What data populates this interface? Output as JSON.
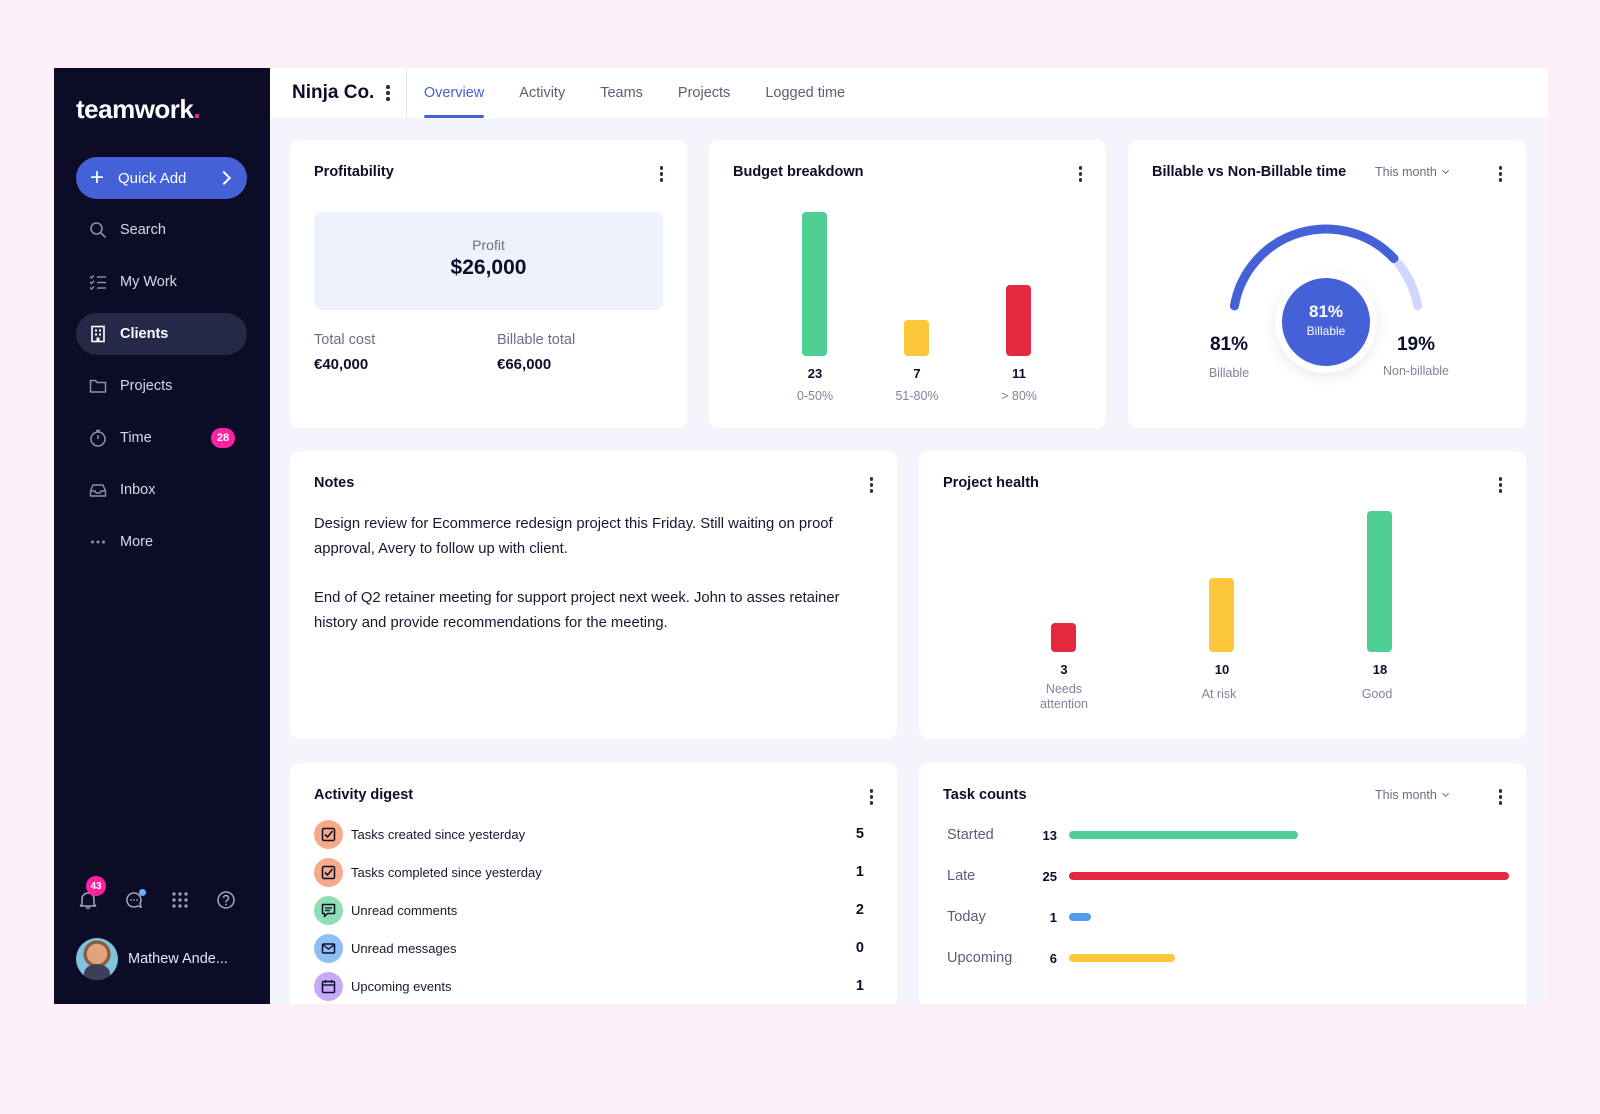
{
  "sidebar": {
    "logo": "teamwork",
    "logo_dot": ".",
    "quick_add": "Quick Add",
    "items": [
      {
        "label": "Search"
      },
      {
        "label": "My Work"
      },
      {
        "label": "Clients"
      },
      {
        "label": "Projects"
      },
      {
        "label": "Time",
        "badge": "28"
      },
      {
        "label": "Inbox"
      },
      {
        "label": "More"
      }
    ],
    "notifications_badge": "43",
    "user_name": "Mathew Ande..."
  },
  "header": {
    "company": "Ninja Co.",
    "tabs": [
      "Overview",
      "Activity",
      "Teams",
      "Projects",
      "Logged time"
    ],
    "active_tab": "Overview"
  },
  "profitability": {
    "title": "Profitability",
    "profit_label": "Profit",
    "profit_value": "$26,000",
    "total_cost_label": "Total cost",
    "total_cost_value": "€40,000",
    "billable_total_label": "Billable total",
    "billable_total_value": "€66,000"
  },
  "budget": {
    "title": "Budget breakdown",
    "bars": [
      {
        "value": "23",
        "label": "0-50%",
        "color": "#4fcf92"
      },
      {
        "value": "7",
        "label": "51-80%",
        "color": "#fcc73a"
      },
      {
        "value": "11",
        "label": "> 80%",
        "color": "#e4283e"
      }
    ]
  },
  "billable": {
    "title": "Billable vs Non-Billable time",
    "period": "This month",
    "billable_pct": 81,
    "center_pct": "81%",
    "center_label": "Billable",
    "left_pct": "81%",
    "left_label": "Billable",
    "right_pct": "19%",
    "right_label": "Non-billable",
    "billable_color": "#4461d7",
    "non_billable_color": "#cfd8fb"
  },
  "notes": {
    "title": "Notes",
    "paragraphs": [
      "Design review for Ecommerce redesign project this Friday. Still waiting on proof approval, Avery to follow up with client.",
      "End of Q2 retainer meeting for support project next week. John to asses retainer history and provide recommendations for the meeting."
    ]
  },
  "health": {
    "title": "Project health",
    "bars": [
      {
        "value": "3",
        "label": "Needs attention",
        "color": "#e4283e"
      },
      {
        "value": "10",
        "label": "At risk",
        "color": "#fcc73a"
      },
      {
        "value": "18",
        "label": "Good",
        "color": "#4fcf92"
      }
    ]
  },
  "digest": {
    "title": "Activity digest",
    "rows": [
      {
        "label": "Tasks created since yesterday",
        "count": "5",
        "icon": "checkbox-icon",
        "bg": "#f8a987"
      },
      {
        "label": "Tasks completed since yesterday",
        "count": "1",
        "icon": "checkbox-icon",
        "bg": "#f8a987"
      },
      {
        "label": "Unread comments",
        "count": "2",
        "icon": "comment-icon",
        "bg": "#8ee0b4"
      },
      {
        "label": "Unread messages",
        "count": "0",
        "icon": "envelope-icon",
        "bg": "#8fbef5"
      },
      {
        "label": "Upcoming events",
        "count": "1",
        "icon": "calendar-icon",
        "bg": "#c7a9f5"
      }
    ]
  },
  "tasks": {
    "title": "Task counts",
    "period": "This month",
    "rows": [
      {
        "label": "Started",
        "count": "13",
        "value": 13,
        "color": "#4fcf92"
      },
      {
        "label": "Late",
        "count": "25",
        "value": 25,
        "color": "#e4283e"
      },
      {
        "label": "Today",
        "count": "1",
        "value": 1,
        "color": "#4f9cf0"
      },
      {
        "label": "Upcoming",
        "count": "6",
        "value": 6,
        "color": "#fcc73a"
      }
    ]
  }
}
